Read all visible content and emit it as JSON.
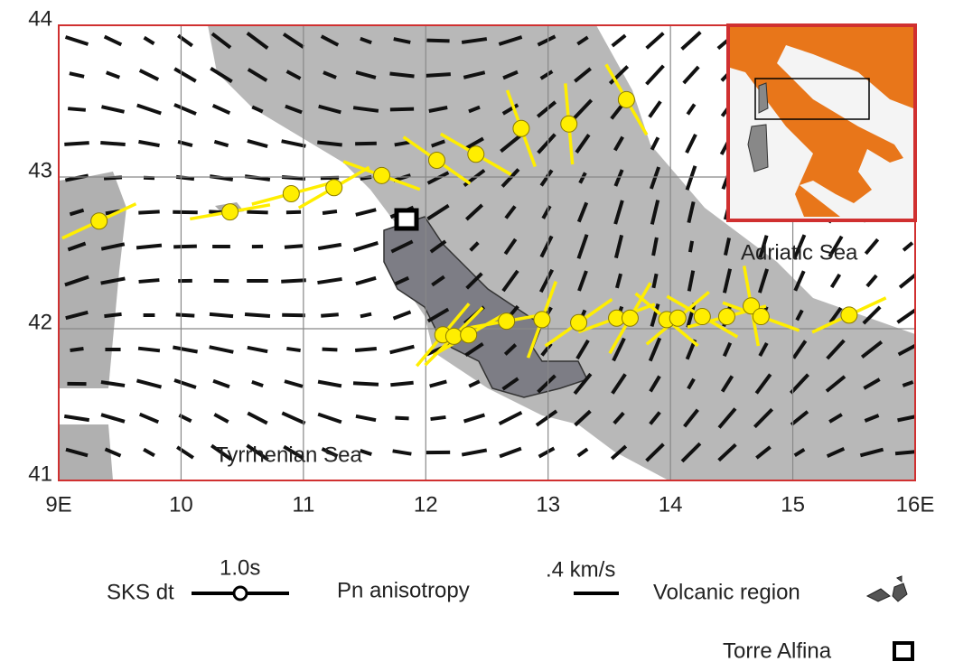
{
  "map": {
    "xlim": [
      9,
      16
    ],
    "ylim": [
      41,
      44
    ],
    "xticks": [
      {
        "value": 9,
        "label": "9E"
      },
      10,
      11,
      12,
      13,
      14,
      15,
      {
        "value": 16,
        "label": "16E"
      }
    ],
    "yticks": [
      41,
      42,
      43,
      44
    ],
    "sea_labels": [
      "Tyrrhenian Sea",
      "Adriatic Sea"
    ],
    "sks_color": "#ffee00",
    "sks_stations": [
      {
        "lon": 9.33,
        "lat": 42.71,
        "azimuth": 65
      },
      {
        "lon": 10.4,
        "lat": 42.77,
        "azimuth": 80
      },
      {
        "lon": 10.9,
        "lat": 42.89,
        "azimuth": 75
      },
      {
        "lon": 11.25,
        "lat": 42.93,
        "azimuth": 60
      },
      {
        "lon": 11.64,
        "lat": 43.01,
        "azimuth": 110
      },
      {
        "lon": 12.09,
        "lat": 43.11,
        "azimuth": 125
      },
      {
        "lon": 12.41,
        "lat": 43.15,
        "azimuth": 120
      },
      {
        "lon": 12.78,
        "lat": 43.32,
        "azimuth": 160
      },
      {
        "lon": 13.17,
        "lat": 43.35,
        "azimuth": 175
      },
      {
        "lon": 13.64,
        "lat": 43.51,
        "azimuth": 150
      },
      {
        "lon": 12.14,
        "lat": 41.96,
        "azimuth": 40
      },
      {
        "lon": 12.23,
        "lat": 41.95,
        "azimuth": 45
      },
      {
        "lon": 12.35,
        "lat": 41.96,
        "azimuth": 60
      },
      {
        "lon": 12.66,
        "lat": 42.05,
        "azimuth": 80
      },
      {
        "lon": 12.95,
        "lat": 42.06,
        "azimuth": 20
      },
      {
        "lon": 13.25,
        "lat": 42.04,
        "azimuth": 55
      },
      {
        "lon": 13.56,
        "lat": 42.07,
        "azimuth": 70
      },
      {
        "lon": 13.67,
        "lat": 42.07,
        "azimuth": 30
      },
      {
        "lon": 13.97,
        "lat": 42.06,
        "azimuth": 130
      },
      {
        "lon": 14.06,
        "lat": 42.07,
        "azimuth": 50
      },
      {
        "lon": 14.26,
        "lat": 42.08,
        "azimuth": 120
      },
      {
        "lon": 14.46,
        "lat": 42.08,
        "azimuth": 75
      },
      {
        "lon": 14.66,
        "lat": 42.15,
        "azimuth": 170
      },
      {
        "lon": 14.74,
        "lat": 42.08,
        "azimuth": 110
      },
      {
        "lon": 15.46,
        "lat": 42.09,
        "azimuth": 65
      }
    ],
    "legend": {
      "sks_label": "SKS dt",
      "sks_scale": "1.0s",
      "pn_label": "Pn anisotropy",
      "pn_scale": ".4 km/s",
      "volcanic_label": "Volcanic region",
      "torre_label": "Torre Alfina"
    }
  }
}
